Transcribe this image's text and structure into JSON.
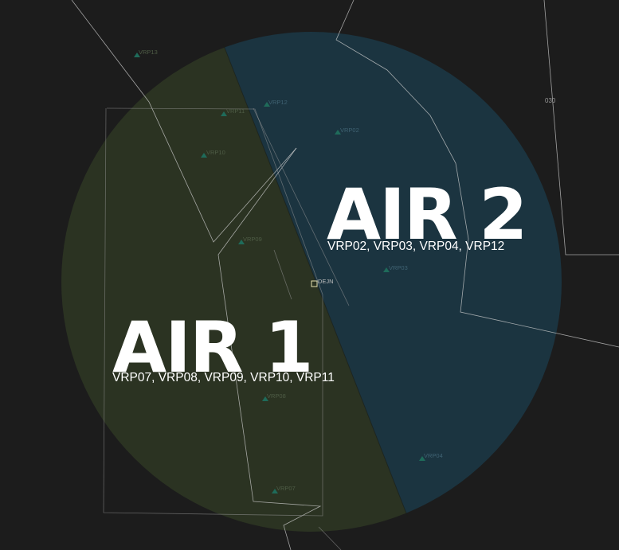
{
  "map": {
    "sectors": [
      {
        "id": "air1",
        "name": "AIR 1",
        "points": "VRP07, VRP08, VRP09, VRP10, VRP11",
        "fill": "#2b3322"
      },
      {
        "id": "air2",
        "name": "AIR 2",
        "points": "VRP02, VRP03, VRP04, VRP12",
        "fill": "#1b3440"
      }
    ],
    "vrps": [
      {
        "id": "VRP13",
        "label": "VRP13"
      },
      {
        "id": "VRP12",
        "label": "VRP12"
      },
      {
        "id": "VRP11",
        "label": "VRP11"
      },
      {
        "id": "VRP02",
        "label": "VRP02"
      },
      {
        "id": "VRP10",
        "label": "VRP10"
      },
      {
        "id": "VRP09",
        "label": "VRP09"
      },
      {
        "id": "VRP03",
        "label": "VRP03"
      },
      {
        "id": "VRP08",
        "label": "VRP08"
      },
      {
        "id": "VRP07",
        "label": "VRP07"
      },
      {
        "id": "VRP04",
        "label": "VRP04"
      }
    ],
    "airport": {
      "label": "DEJN"
    },
    "fix_label": "030",
    "colors": {
      "background": "#1c1c1c",
      "vrp_marker": "#1f6b5a",
      "vrp_text_air1": "#4e5c45",
      "vrp_text_air2": "#3f6272",
      "boundary": "#cfcfcf"
    }
  }
}
